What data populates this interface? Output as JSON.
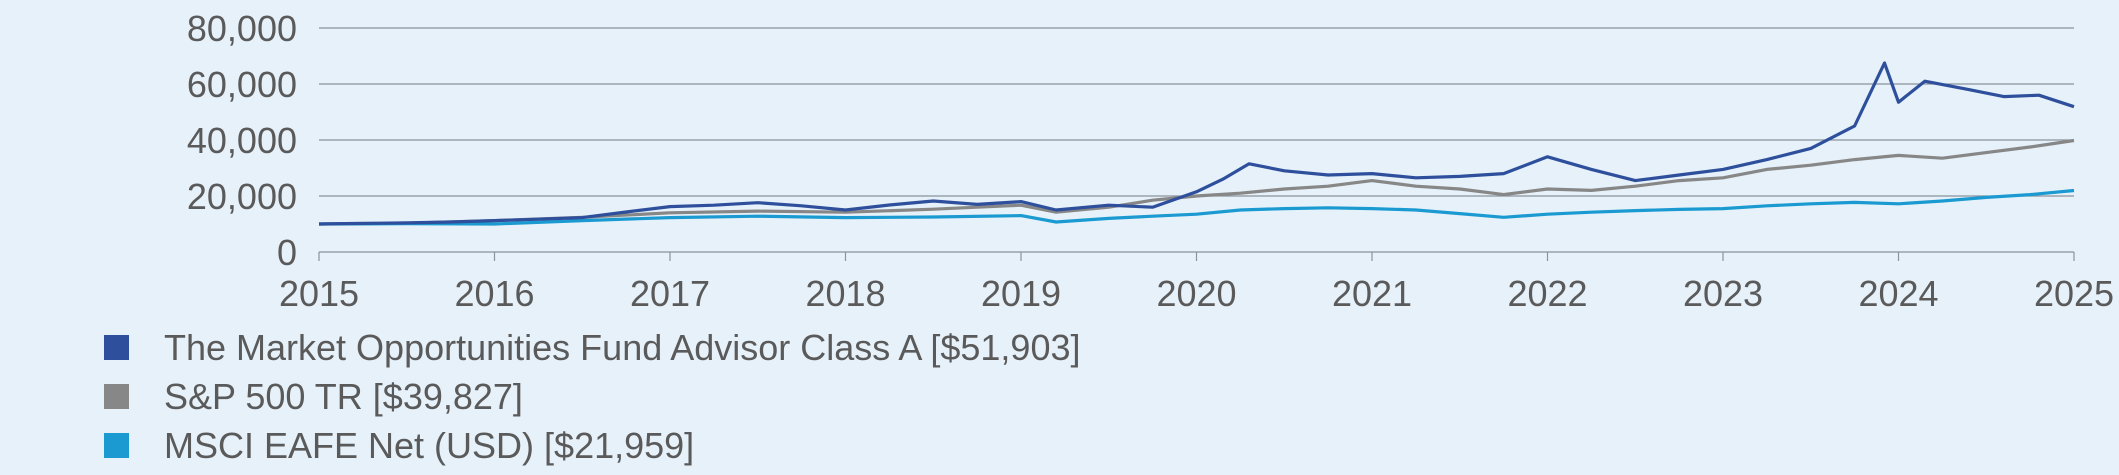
{
  "chart_data": {
    "type": "line",
    "title": "",
    "xlabel": "",
    "ylabel": "",
    "xlim": [
      2015,
      2025
    ],
    "ylim": [
      0,
      80000
    ],
    "x_ticks": [
      "2015",
      "2016",
      "2017",
      "2018",
      "2019",
      "2020",
      "2021",
      "2022",
      "2023",
      "2024",
      "2025"
    ],
    "y_ticks": [
      "0",
      "20,000",
      "40,000",
      "60,000",
      "80,000"
    ],
    "y_tick_values": [
      0,
      20000,
      40000,
      60000,
      80000
    ],
    "grid": "horizontal",
    "legend_position": "bottom",
    "series": [
      {
        "name": "The Market Opportunities Fund Advisor Class A [$51,903]",
        "color": "#2e4f9c",
        "points": [
          [
            2015.0,
            10000
          ],
          [
            2015.25,
            10200
          ],
          [
            2015.5,
            10400
          ],
          [
            2015.75,
            10700
          ],
          [
            2016.0,
            11200
          ],
          [
            2016.25,
            11700
          ],
          [
            2016.5,
            12300
          ],
          [
            2016.75,
            14300
          ],
          [
            2017.0,
            16200
          ],
          [
            2017.25,
            16700
          ],
          [
            2017.5,
            17600
          ],
          [
            2017.75,
            16500
          ],
          [
            2018.0,
            15000
          ],
          [
            2018.25,
            16800
          ],
          [
            2018.5,
            18200
          ],
          [
            2018.75,
            17000
          ],
          [
            2019.0,
            18000
          ],
          [
            2019.2,
            15000
          ],
          [
            2019.5,
            16700
          ],
          [
            2019.75,
            16000
          ],
          [
            2020.0,
            21500
          ],
          [
            2020.15,
            26000
          ],
          [
            2020.3,
            31500
          ],
          [
            2020.5,
            29000
          ],
          [
            2020.75,
            27500
          ],
          [
            2021.0,
            28000
          ],
          [
            2021.25,
            26500
          ],
          [
            2021.5,
            27000
          ],
          [
            2021.75,
            28000
          ],
          [
            2022.0,
            34000
          ],
          [
            2022.25,
            29500
          ],
          [
            2022.5,
            25500
          ],
          [
            2022.75,
            27500
          ],
          [
            2023.0,
            29500
          ],
          [
            2023.25,
            33000
          ],
          [
            2023.5,
            37000
          ],
          [
            2023.75,
            45000
          ],
          [
            2023.92,
            67500
          ],
          [
            2024.0,
            53500
          ],
          [
            2024.15,
            61000
          ],
          [
            2024.4,
            58000
          ],
          [
            2024.6,
            55500
          ],
          [
            2024.8,
            56000
          ],
          [
            2025.0,
            51903
          ]
        ]
      },
      {
        "name": "S&P 500 TR [$39,827]",
        "color": "#878787",
        "points": [
          [
            2015.0,
            10000
          ],
          [
            2015.5,
            10300
          ],
          [
            2016.0,
            11200
          ],
          [
            2016.5,
            12400
          ],
          [
            2017.0,
            14000
          ],
          [
            2017.5,
            14600
          ],
          [
            2018.0,
            14200
          ],
          [
            2018.5,
            15300
          ],
          [
            2018.75,
            16000
          ],
          [
            2019.0,
            16700
          ],
          [
            2019.2,
            14200
          ],
          [
            2019.5,
            16000
          ],
          [
            2019.75,
            18500
          ],
          [
            2020.0,
            20000
          ],
          [
            2020.25,
            21000
          ],
          [
            2020.5,
            22500
          ],
          [
            2020.75,
            23500
          ],
          [
            2021.0,
            25500
          ],
          [
            2021.25,
            23500
          ],
          [
            2021.5,
            22500
          ],
          [
            2021.75,
            20500
          ],
          [
            2022.0,
            22500
          ],
          [
            2022.25,
            22000
          ],
          [
            2022.5,
            23500
          ],
          [
            2022.75,
            25500
          ],
          [
            2023.0,
            26500
          ],
          [
            2023.25,
            29500
          ],
          [
            2023.5,
            31000
          ],
          [
            2023.75,
            33000
          ],
          [
            2024.0,
            34500
          ],
          [
            2024.25,
            33500
          ],
          [
            2024.5,
            35500
          ],
          [
            2024.75,
            37500
          ],
          [
            2025.0,
            39827
          ]
        ]
      },
      {
        "name": "MSCI EAFE Net (USD) [$21,959]",
        "color": "#1a9ad0",
        "points": [
          [
            2015.0,
            10000
          ],
          [
            2015.5,
            10100
          ],
          [
            2016.0,
            10000
          ],
          [
            2016.5,
            11200
          ],
          [
            2017.0,
            12300
          ],
          [
            2017.5,
            12800
          ],
          [
            2018.0,
            12300
          ],
          [
            2018.5,
            12500
          ],
          [
            2019.0,
            13000
          ],
          [
            2019.2,
            10700
          ],
          [
            2019.5,
            12000
          ],
          [
            2019.75,
            12800
          ],
          [
            2020.0,
            13500
          ],
          [
            2020.25,
            15000
          ],
          [
            2020.5,
            15500
          ],
          [
            2020.75,
            15800
          ],
          [
            2021.0,
            15500
          ],
          [
            2021.25,
            15000
          ],
          [
            2021.5,
            13700
          ],
          [
            2021.75,
            12400
          ],
          [
            2022.0,
            13500
          ],
          [
            2022.25,
            14200
          ],
          [
            2022.5,
            14800
          ],
          [
            2022.75,
            15200
          ],
          [
            2023.0,
            15500
          ],
          [
            2023.25,
            16500
          ],
          [
            2023.5,
            17200
          ],
          [
            2023.75,
            17700
          ],
          [
            2024.0,
            17200
          ],
          [
            2024.25,
            18200
          ],
          [
            2024.5,
            19500
          ],
          [
            2024.75,
            20500
          ],
          [
            2025.0,
            21959
          ]
        ]
      }
    ]
  }
}
